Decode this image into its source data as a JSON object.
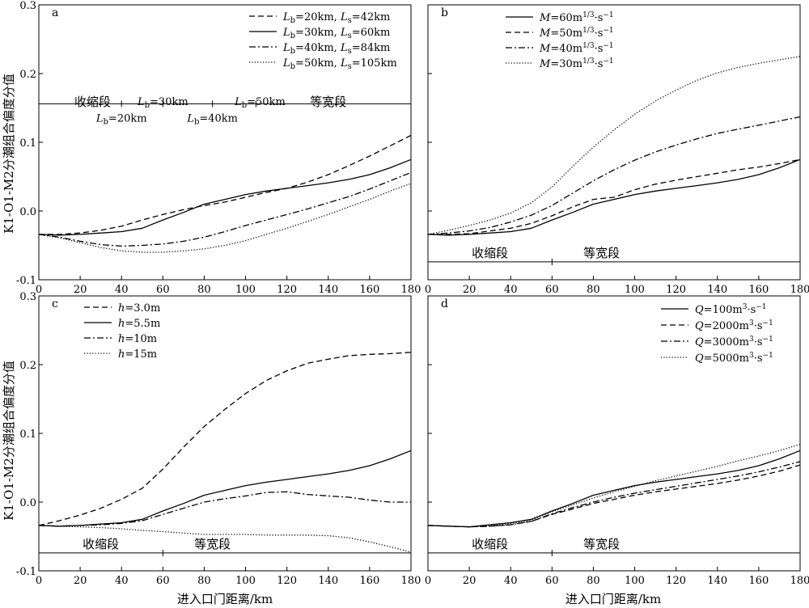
{
  "figure": {
    "ylabel": "K1-O1-M2分潮组合偏度分值",
    "xlabel": "进入口门距离/km"
  },
  "chart_data": [
    {
      "type": "line",
      "panel_label": "a",
      "xlim": [
        0,
        180
      ],
      "ylim": [
        -0.1,
        0.3
      ],
      "xticks": [
        0,
        20,
        40,
        60,
        80,
        100,
        120,
        140,
        160,
        180
      ],
      "yticks": [
        -0.1,
        0.0,
        0.1,
        0.2,
        0.3
      ],
      "ytick_labels": [
        "-0.1",
        "0.0",
        "0.1",
        "0.2",
        "0.3"
      ],
      "legend_position": "top-right",
      "series": [
        {
          "name": "Lb=20km, Ls=42km",
          "label_parts": [
            [
              "L",
              "b",
              "=20km, "
            ],
            [
              "L",
              "s",
              "=42km"
            ]
          ],
          "dash": "dashed",
          "x": [
            0,
            10,
            20,
            30,
            40,
            50,
            60,
            70,
            80,
            90,
            100,
            110,
            120,
            130,
            140,
            150,
            160,
            170,
            180
          ],
          "y": [
            -0.034,
            -0.034,
            -0.032,
            -0.028,
            -0.022,
            -0.013,
            -0.005,
            0.002,
            0.008,
            0.013,
            0.02,
            0.027,
            0.033,
            0.042,
            0.053,
            0.066,
            0.08,
            0.095,
            0.11
          ]
        },
        {
          "name": "Lb=30km, Ls=60km",
          "label_parts": [
            [
              "L",
              "b",
              "=30km, "
            ],
            [
              "L",
              "s",
              "=60km"
            ]
          ],
          "dash": "solid",
          "x": [
            0,
            10,
            20,
            30,
            40,
            50,
            60,
            70,
            80,
            90,
            100,
            110,
            120,
            130,
            140,
            150,
            160,
            170,
            180
          ],
          "y": [
            -0.034,
            -0.035,
            -0.034,
            -0.032,
            -0.03,
            -0.025,
            -0.013,
            -0.002,
            0.01,
            0.017,
            0.024,
            0.029,
            0.033,
            0.037,
            0.041,
            0.046,
            0.053,
            0.063,
            0.075
          ]
        },
        {
          "name": "Lb=40km, Ls=84km",
          "label_parts": [
            [
              "L",
              "b",
              "=40km, "
            ],
            [
              "L",
              "s",
              "=84km"
            ]
          ],
          "dash": "dashdot",
          "x": [
            0,
            10,
            20,
            30,
            40,
            50,
            60,
            70,
            80,
            90,
            100,
            110,
            120,
            130,
            140,
            150,
            160,
            170,
            180
          ],
          "y": [
            -0.034,
            -0.038,
            -0.044,
            -0.049,
            -0.051,
            -0.05,
            -0.048,
            -0.044,
            -0.038,
            -0.03,
            -0.021,
            -0.013,
            -0.005,
            0.003,
            0.012,
            0.021,
            0.032,
            0.044,
            0.056
          ]
        },
        {
          "name": "Lb=50km, Ls=105km",
          "label_parts": [
            [
              "L",
              "b",
              "=50km, "
            ],
            [
              "L",
              "s",
              "=105km"
            ]
          ],
          "dash": "dotted",
          "x": [
            0,
            10,
            20,
            30,
            40,
            50,
            60,
            70,
            80,
            90,
            100,
            110,
            120,
            130,
            140,
            150,
            160,
            170,
            180
          ],
          "y": [
            -0.034,
            -0.039,
            -0.046,
            -0.053,
            -0.058,
            -0.06,
            -0.06,
            -0.058,
            -0.055,
            -0.05,
            -0.043,
            -0.034,
            -0.025,
            -0.015,
            -0.005,
            0.006,
            0.017,
            0.029,
            0.04
          ]
        }
      ],
      "annotations": {
        "hline_y": 0.156,
        "ticks_x": [
          40,
          60,
          84,
          105
        ],
        "segments": [
          {
            "text": "收缩段",
            "x": 26,
            "y": 0.16,
            "anchor": "middle"
          },
          {
            "text": "等宽段",
            "x": 140,
            "y": 0.16,
            "anchor": "middle"
          }
        ],
        "markers": [
          {
            "label_parts": [
              "L",
              "b",
              "=20km"
            ],
            "x": 40,
            "y": 0.136
          },
          {
            "label_parts": [
              "L",
              "b",
              "=30km"
            ],
            "x": 60,
            "y": 0.16
          },
          {
            "label_parts": [
              "L",
              "b",
              "=40km"
            ],
            "x": 84,
            "y": 0.136
          },
          {
            "label_parts": [
              "L",
              "b",
              "=50km"
            ],
            "x": 107,
            "y": 0.16
          }
        ]
      }
    },
    {
      "type": "line",
      "panel_label": "b",
      "xlim": [
        0,
        180
      ],
      "ylim": [
        -0.1,
        0.3
      ],
      "xticks": [
        0,
        20,
        40,
        60,
        80,
        100,
        120,
        140,
        160,
        180
      ],
      "yticks": [
        -0.1,
        0.0,
        0.1,
        0.2,
        0.3
      ],
      "legend_position": "top-left",
      "series": [
        {
          "name": "M=60m1/3·s-1",
          "label_parts": [
            "M",
            "=60m",
            "1/3",
            "·s",
            "−1"
          ],
          "dash": "solid",
          "x": [
            0,
            10,
            20,
            30,
            40,
            50,
            60,
            70,
            80,
            90,
            100,
            110,
            120,
            130,
            140,
            150,
            160,
            170,
            180
          ],
          "y": [
            -0.034,
            -0.035,
            -0.034,
            -0.032,
            -0.03,
            -0.025,
            -0.013,
            -0.002,
            0.01,
            0.017,
            0.024,
            0.029,
            0.033,
            0.037,
            0.041,
            0.046,
            0.053,
            0.063,
            0.075
          ]
        },
        {
          "name": "M=50m1/3·s-1",
          "label_parts": [
            "M",
            "=50m",
            "1/3",
            "·s",
            "−1"
          ],
          "dash": "dashed",
          "x": [
            0,
            10,
            20,
            30,
            40,
            50,
            60,
            70,
            80,
            90,
            100,
            110,
            120,
            130,
            140,
            150,
            160,
            170,
            180
          ],
          "y": [
            -0.034,
            -0.034,
            -0.033,
            -0.029,
            -0.025,
            -0.018,
            -0.007,
            0.006,
            0.017,
            0.02,
            0.031,
            0.039,
            0.045,
            0.05,
            0.055,
            0.06,
            0.064,
            0.069,
            0.075
          ]
        },
        {
          "name": "M=40m1/3·s-1",
          "label_parts": [
            "M",
            "=40m",
            "1/3",
            "·s",
            "−1"
          ],
          "dash": "dashdot",
          "x": [
            0,
            10,
            20,
            30,
            40,
            50,
            60,
            70,
            80,
            90,
            100,
            110,
            120,
            130,
            140,
            150,
            160,
            170,
            180
          ],
          "y": [
            -0.034,
            -0.032,
            -0.029,
            -0.024,
            -0.016,
            -0.006,
            0.008,
            0.026,
            0.044,
            0.06,
            0.074,
            0.086,
            0.096,
            0.105,
            0.113,
            0.119,
            0.125,
            0.131,
            0.137
          ]
        },
        {
          "name": "M=30m1/3·s-1",
          "label_parts": [
            "M",
            "=30m",
            "1/3",
            "·s",
            "−1"
          ],
          "dash": "dotted",
          "x": [
            0,
            10,
            20,
            30,
            40,
            50,
            60,
            70,
            80,
            90,
            100,
            110,
            120,
            130,
            140,
            150,
            160,
            170,
            180
          ],
          "y": [
            -0.034,
            -0.028,
            -0.021,
            -0.013,
            -0.003,
            0.012,
            0.035,
            0.065,
            0.093,
            0.118,
            0.141,
            0.16,
            0.176,
            0.19,
            0.201,
            0.209,
            0.215,
            0.22,
            0.225
          ]
        }
      ],
      "annotations": {
        "hline_y": -0.074,
        "ticks_x": [
          60
        ],
        "segments": [
          {
            "text": "收缩段",
            "x": 30,
            "y": -0.06,
            "anchor": "middle"
          },
          {
            "text": "等宽段",
            "x": 84,
            "y": -0.06,
            "anchor": "middle"
          }
        ],
        "markers": []
      }
    },
    {
      "type": "line",
      "panel_label": "c",
      "xlim": [
        0,
        180
      ],
      "ylim": [
        -0.1,
        0.3
      ],
      "xticks": [
        0,
        20,
        40,
        60,
        80,
        100,
        120,
        140,
        160,
        180
      ],
      "yticks": [
        -0.1,
        0.0,
        0.1,
        0.2,
        0.3
      ],
      "ytick_labels": [
        "-0.1",
        "0.0",
        "0.1",
        "0.2",
        "0.3"
      ],
      "legend_position": "top-left",
      "series": [
        {
          "name": "h=3.0m",
          "label_parts": [
            "h",
            "=3.0m"
          ],
          "dash": "dashed",
          "x": [
            0,
            10,
            20,
            30,
            40,
            50,
            60,
            70,
            80,
            90,
            100,
            110,
            120,
            130,
            140,
            150,
            160,
            170,
            180
          ],
          "y": [
            -0.034,
            -0.027,
            -0.019,
            -0.009,
            0.004,
            0.02,
            0.048,
            0.08,
            0.11,
            0.135,
            0.158,
            0.177,
            0.191,
            0.202,
            0.208,
            0.213,
            0.215,
            0.216,
            0.218
          ]
        },
        {
          "name": "h=5.5m",
          "label_parts": [
            "h",
            "=5.5m"
          ],
          "dash": "solid",
          "x": [
            0,
            10,
            20,
            30,
            40,
            50,
            60,
            70,
            80,
            90,
            100,
            110,
            120,
            130,
            140,
            150,
            160,
            170,
            180
          ],
          "y": [
            -0.034,
            -0.035,
            -0.034,
            -0.032,
            -0.03,
            -0.025,
            -0.013,
            -0.002,
            0.01,
            0.017,
            0.024,
            0.029,
            0.033,
            0.037,
            0.041,
            0.046,
            0.053,
            0.063,
            0.075
          ]
        },
        {
          "name": "h=10m",
          "label_parts": [
            "h",
            "=10m"
          ],
          "dash": "dashdot",
          "x": [
            0,
            10,
            20,
            30,
            40,
            50,
            60,
            70,
            80,
            90,
            100,
            110,
            120,
            130,
            140,
            150,
            160,
            170,
            180
          ],
          "y": [
            -0.034,
            -0.035,
            -0.034,
            -0.033,
            -0.031,
            -0.027,
            -0.018,
            -0.009,
            0.0,
            0.005,
            0.009,
            0.014,
            0.015,
            0.011,
            0.009,
            0.007,
            0.003,
            0.0,
            0.0
          ]
        },
        {
          "name": "h=15m",
          "label_parts": [
            "h",
            "=15m"
          ],
          "dash": "dotted",
          "x": [
            0,
            10,
            20,
            30,
            40,
            50,
            60,
            70,
            80,
            90,
            100,
            110,
            120,
            130,
            140,
            150,
            160,
            170,
            180
          ],
          "y": [
            -0.034,
            -0.035,
            -0.036,
            -0.037,
            -0.039,
            -0.041,
            -0.043,
            -0.045,
            -0.047,
            -0.047,
            -0.047,
            -0.048,
            -0.048,
            -0.048,
            -0.049,
            -0.052,
            -0.058,
            -0.065,
            -0.073
          ]
        }
      ],
      "annotations": {
        "hline_y": -0.074,
        "ticks_x": [
          60
        ],
        "segments": [
          {
            "text": "收缩段",
            "x": 30,
            "y": -0.06,
            "anchor": "middle"
          },
          {
            "text": "等宽段",
            "x": 84,
            "y": -0.06,
            "anchor": "middle"
          }
        ],
        "markers": []
      }
    },
    {
      "type": "line",
      "panel_label": "d",
      "xlim": [
        0,
        180
      ],
      "ylim": [
        -0.1,
        0.3
      ],
      "xticks": [
        0,
        20,
        40,
        60,
        80,
        100,
        120,
        140,
        160,
        180
      ],
      "yticks": [
        -0.1,
        0.0,
        0.1,
        0.2,
        0.3
      ],
      "legend_position": "top-right",
      "series": [
        {
          "name": "Q=100m3·s-1",
          "label_parts": [
            "Q",
            "=100m",
            "3",
            "·s",
            "−1"
          ],
          "dash": "solid",
          "x": [
            0,
            10,
            20,
            30,
            40,
            50,
            60,
            70,
            80,
            90,
            100,
            110,
            120,
            130,
            140,
            150,
            160,
            170,
            180
          ],
          "y": [
            -0.034,
            -0.035,
            -0.036,
            -0.033,
            -0.03,
            -0.025,
            -0.013,
            -0.002,
            0.01,
            0.017,
            0.024,
            0.029,
            0.033,
            0.037,
            0.041,
            0.046,
            0.053,
            0.063,
            0.075
          ]
        },
        {
          "name": "Q=2000m3·s-1",
          "label_parts": [
            "Q",
            "=2000m",
            "3",
            "·s",
            "−1"
          ],
          "dash": "dashed",
          "x": [
            0,
            10,
            20,
            30,
            40,
            50,
            60,
            70,
            80,
            90,
            100,
            110,
            120,
            130,
            140,
            150,
            160,
            170,
            180
          ],
          "y": [
            -0.034,
            -0.035,
            -0.036,
            -0.035,
            -0.033,
            -0.028,
            -0.018,
            -0.01,
            -0.002,
            0.004,
            0.01,
            0.015,
            0.019,
            0.023,
            0.027,
            0.032,
            0.038,
            0.045,
            0.054
          ]
        },
        {
          "name": "Q=3000m3·s-1",
          "label_parts": [
            "Q",
            "=3000m",
            "3",
            "·s",
            "−1"
          ],
          "dash": "dashdot",
          "x": [
            0,
            10,
            20,
            30,
            40,
            50,
            60,
            70,
            80,
            90,
            100,
            110,
            120,
            130,
            140,
            150,
            160,
            170,
            180
          ],
          "y": [
            -0.034,
            -0.035,
            -0.036,
            -0.035,
            -0.033,
            -0.028,
            -0.017,
            -0.008,
            0.0,
            0.007,
            0.013,
            0.018,
            0.023,
            0.028,
            0.033,
            0.038,
            0.044,
            0.051,
            0.059
          ]
        },
        {
          "name": "Q=5000m3·s-1",
          "label_parts": [
            "Q",
            "=5000m",
            "3",
            "·s",
            "−1"
          ],
          "dash": "dotted",
          "x": [
            0,
            10,
            20,
            30,
            40,
            50,
            60,
            70,
            80,
            90,
            100,
            110,
            120,
            130,
            140,
            150,
            160,
            170,
            180
          ],
          "y": [
            -0.034,
            -0.035,
            -0.036,
            -0.034,
            -0.031,
            -0.026,
            -0.014,
            -0.004,
            0.006,
            0.015,
            0.023,
            0.031,
            0.038,
            0.045,
            0.052,
            0.06,
            0.067,
            0.075,
            0.084
          ]
        }
      ],
      "annotations": {
        "hline_y": -0.074,
        "ticks_x": [
          60
        ],
        "segments": [
          {
            "text": "收缩段",
            "x": 30,
            "y": -0.06,
            "anchor": "middle"
          },
          {
            "text": "等宽段",
            "x": 84,
            "y": -0.06,
            "anchor": "middle"
          }
        ],
        "markers": []
      }
    }
  ]
}
